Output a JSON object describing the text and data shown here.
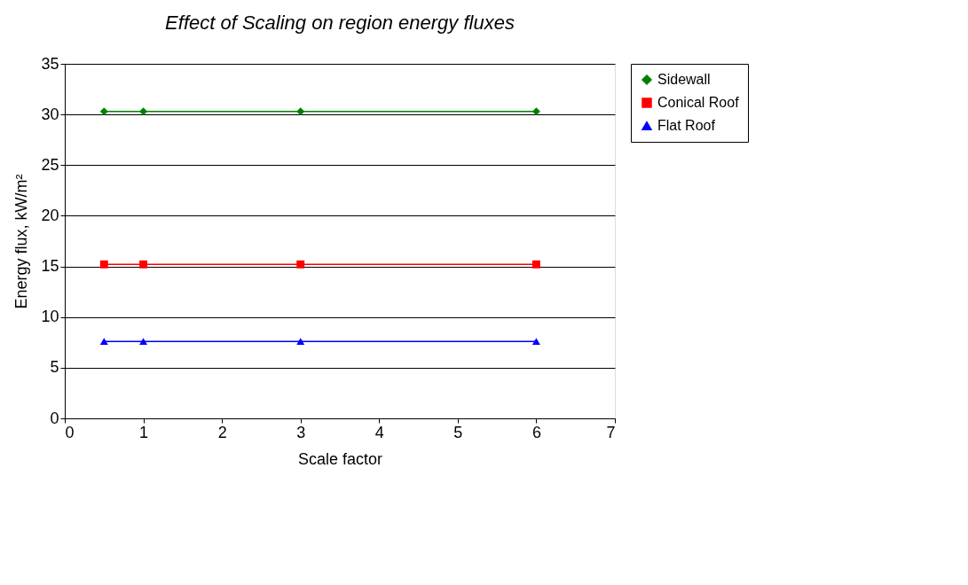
{
  "chart_data": {
    "type": "line",
    "title": "Effect of Scaling on region energy fluxes",
    "xlabel": "Scale factor",
    "ylabel": "Energy flux, kW/m²",
    "x": [
      0.5,
      1,
      3,
      6
    ],
    "series": [
      {
        "name": "Sidewall",
        "color": "#008000",
        "marker": "diamond",
        "values": [
          30.3,
          30.3,
          30.3,
          30.3
        ]
      },
      {
        "name": "Conical Roof",
        "color": "#ff0000",
        "marker": "square",
        "values": [
          15.2,
          15.2,
          15.2,
          15.2
        ]
      },
      {
        "name": "Flat Roof",
        "color": "#0000ff",
        "marker": "triangle",
        "values": [
          7.6,
          7.6,
          7.6,
          7.6
        ]
      }
    ],
    "xlim": [
      0,
      7
    ],
    "xticks": [
      0,
      1,
      2,
      3,
      4,
      5,
      6,
      7
    ],
    "ylim": [
      0,
      35
    ],
    "yticks": [
      0,
      5,
      10,
      15,
      20,
      25,
      30,
      35
    ],
    "grid": "y",
    "legend": "right",
    "line_style": "solid"
  }
}
